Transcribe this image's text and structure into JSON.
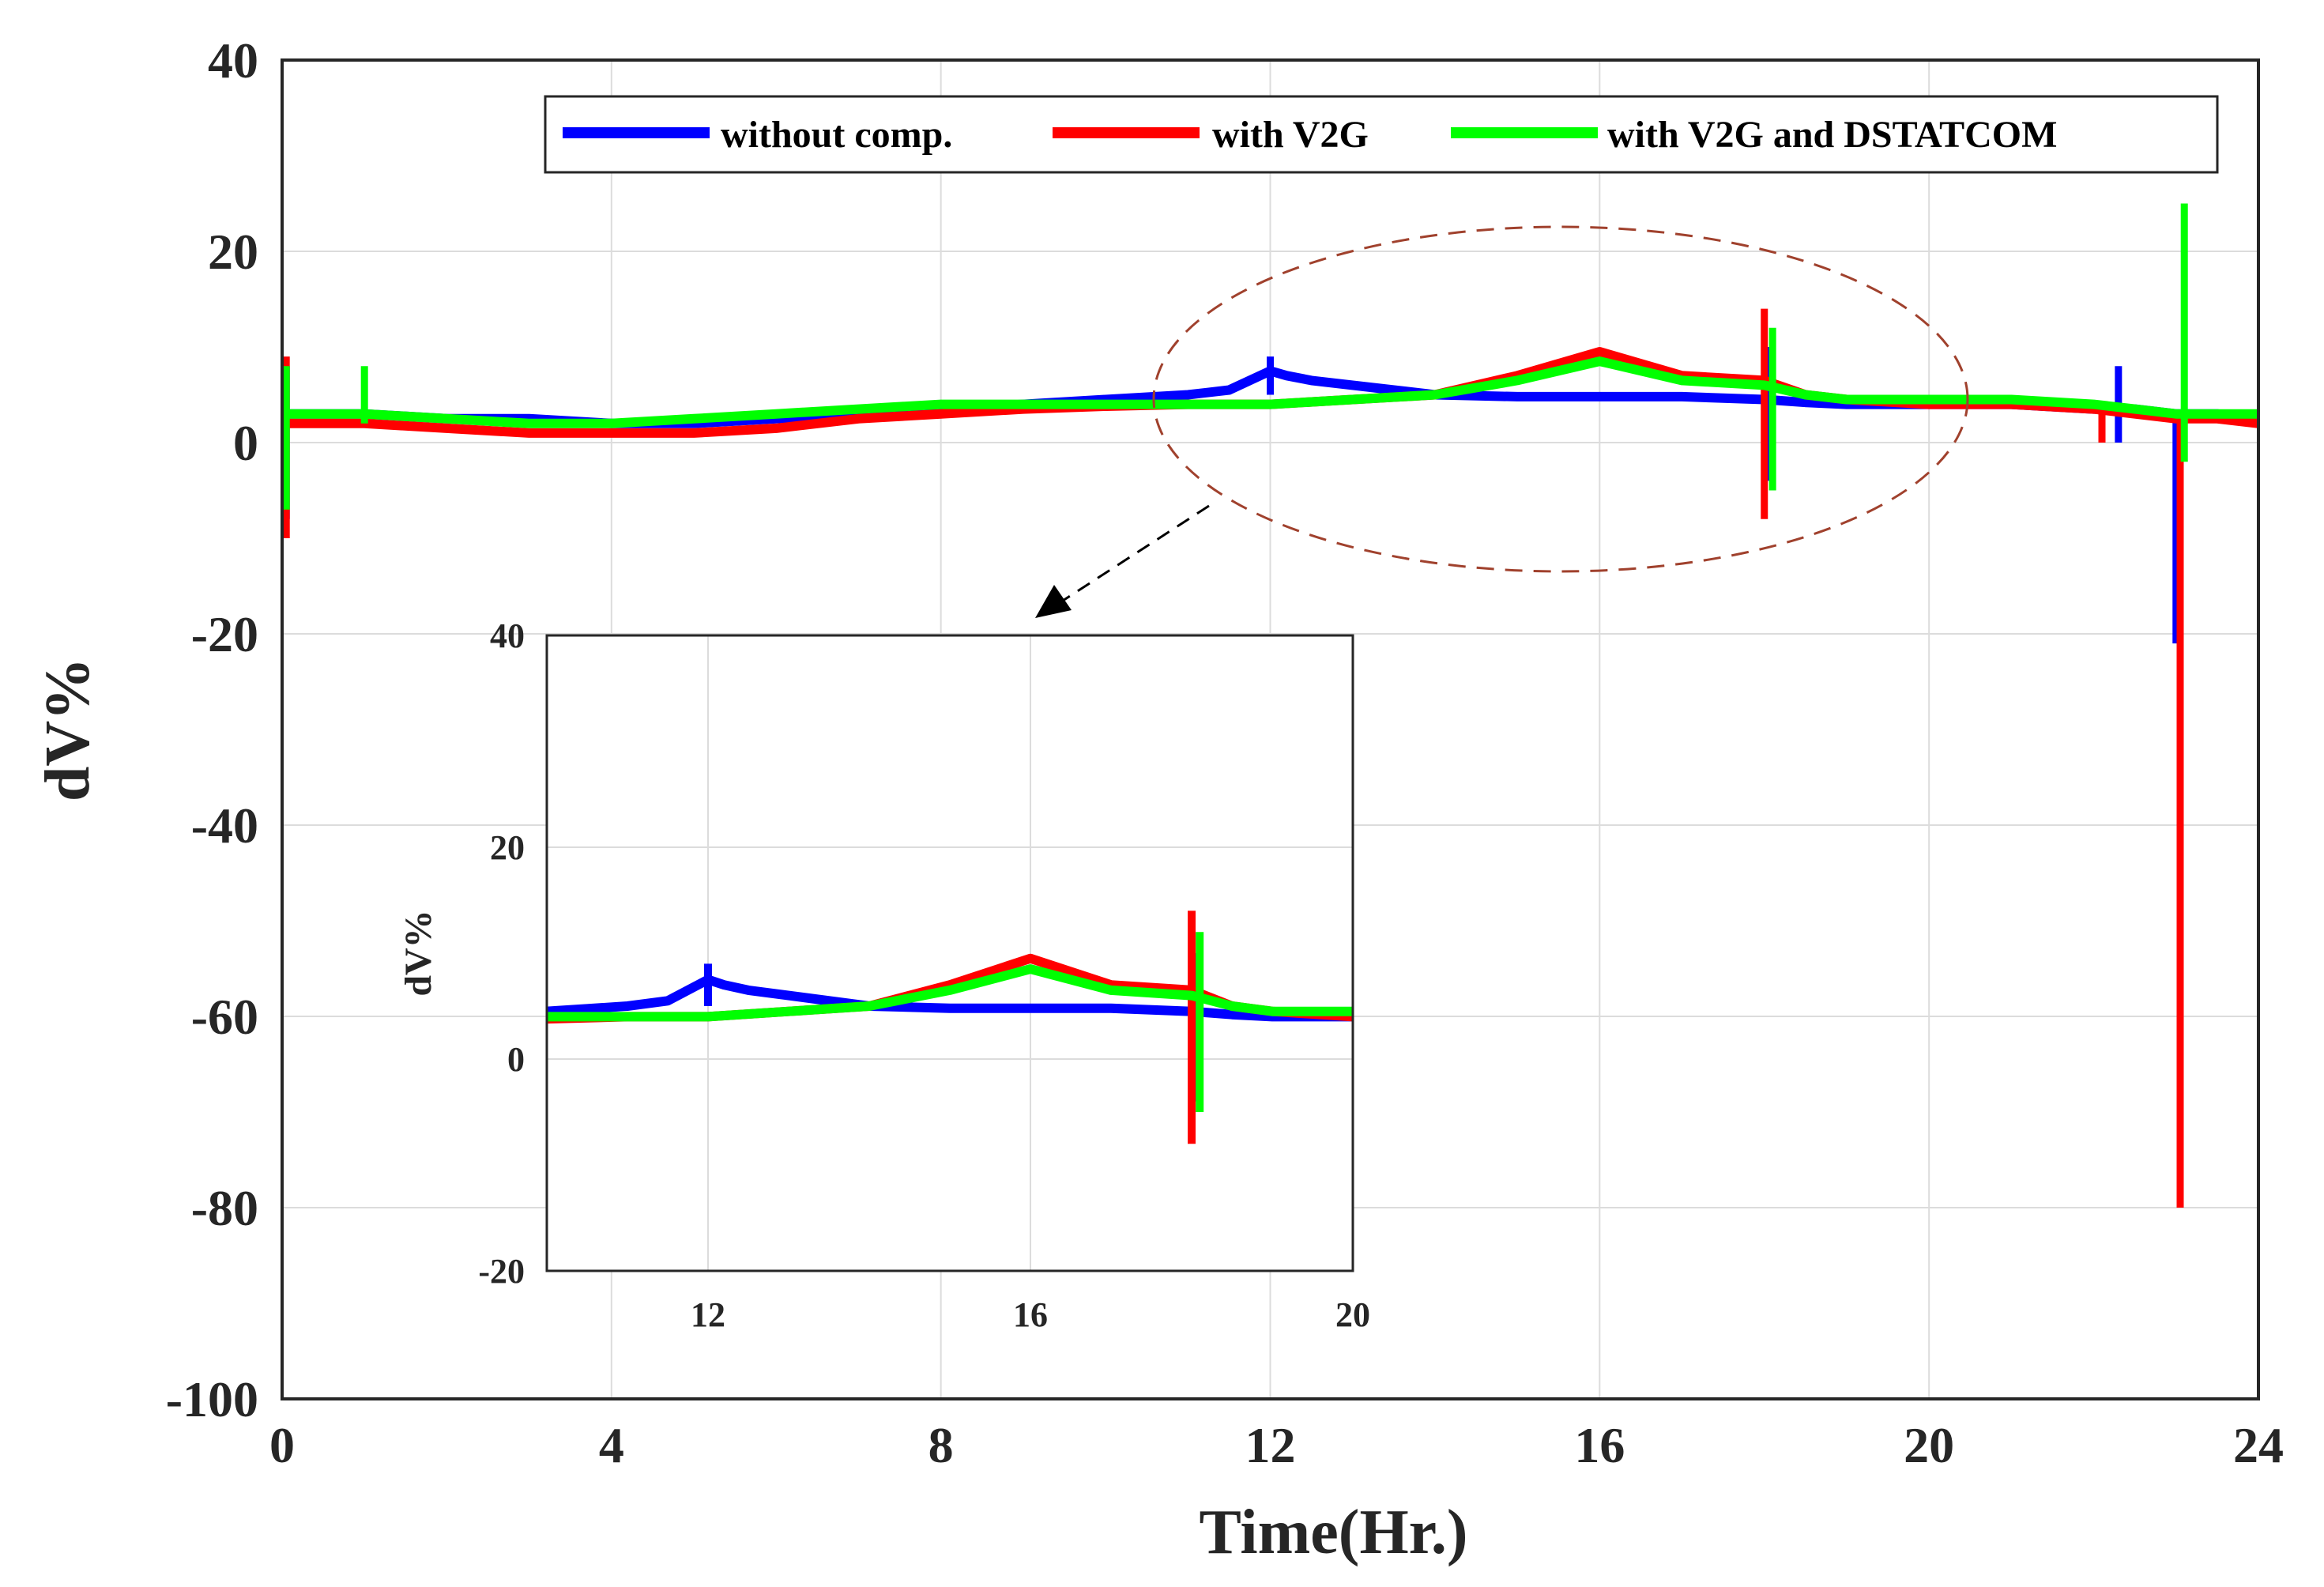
{
  "chart_data": {
    "type": "line",
    "title": "",
    "xlabel": "Time(Hr.)",
    "ylabel": "dV%",
    "xlim": [
      0,
      24
    ],
    "ylim": [
      -100,
      40
    ],
    "x_ticks": [
      0,
      4,
      8,
      12,
      16,
      20,
      24
    ],
    "y_ticks": [
      -100,
      -80,
      -60,
      -40,
      -20,
      0,
      20,
      40
    ],
    "grid": true,
    "legend_position": "top-right",
    "series": [
      {
        "name": "without comp.",
        "color": "#0000ff",
        "x": [
          0,
          1,
          2,
          3,
          4,
          5,
          6,
          7,
          8,
          9,
          10,
          11,
          11.5,
          12,
          12.2,
          12.5,
          13,
          14,
          15,
          16,
          17,
          18,
          18.5,
          19,
          20,
          21,
          22,
          22.5,
          23,
          23.5,
          24
        ],
        "y": [
          3,
          3,
          2.5,
          2.5,
          2,
          2,
          2.5,
          3,
          3.5,
          4,
          4.5,
          5,
          5.5,
          7.5,
          7,
          6.5,
          6,
          5,
          4.8,
          4.8,
          4.8,
          4.5,
          4.2,
          4,
          4,
          4,
          3.5,
          3.5,
          3,
          3,
          2.5
        ],
        "spikes": [
          {
            "x": 0.05,
            "low": -8,
            "high": 8
          },
          {
            "x": 12.0,
            "low": 5,
            "high": 9
          },
          {
            "x": 18.05,
            "low": -4,
            "high": 10
          },
          {
            "x": 22.3,
            "low": 0,
            "high": 8
          },
          {
            "x": 23.0,
            "low": -21,
            "high": 3
          }
        ]
      },
      {
        "name": "with V2G",
        "color": "#ff0000",
        "x": [
          0,
          1,
          2,
          3,
          4,
          5,
          6,
          7,
          8,
          9,
          10,
          11,
          12,
          13,
          14,
          15,
          16,
          17,
          18,
          18.5,
          19,
          20,
          21,
          22,
          22.5,
          23,
          23.5,
          24
        ],
        "y": [
          2,
          2,
          1.5,
          1,
          1,
          1,
          1.5,
          2.5,
          3,
          3.5,
          3.8,
          4,
          4,
          4.5,
          5,
          7,
          9.5,
          7,
          6.5,
          5,
          4.5,
          4,
          4,
          3.5,
          3,
          2.5,
          2.5,
          2
        ],
        "spikes": [
          {
            "x": 0.05,
            "low": -10,
            "high": 9
          },
          {
            "x": 18.0,
            "low": -8,
            "high": 14
          },
          {
            "x": 22.1,
            "low": 0,
            "high": 4
          },
          {
            "x": 23.05,
            "low": -80,
            "high": 3
          }
        ]
      },
      {
        "name": "with V2G and DSTATCOM",
        "color": "#00ff00",
        "x": [
          0,
          1,
          2,
          3,
          4,
          5,
          6,
          7,
          8,
          9,
          10,
          11,
          12,
          13,
          14,
          15,
          16,
          17,
          18,
          18.5,
          19,
          20,
          21,
          22,
          22.5,
          23,
          23.5,
          24
        ],
        "y": [
          3,
          3,
          2.5,
          2,
          2,
          2.5,
          3,
          3.5,
          4,
          4,
          4,
          4,
          4,
          4.5,
          5,
          6.5,
          8.5,
          6.5,
          6,
          5,
          4.5,
          4.5,
          4.5,
          4,
          3.5,
          3,
          3,
          3
        ],
        "spikes": [
          {
            "x": 0.05,
            "low": -7,
            "high": 8
          },
          {
            "x": 1.0,
            "low": 2,
            "high": 8
          },
          {
            "x": 18.1,
            "low": -5,
            "high": 12
          },
          {
            "x": 23.1,
            "low": -2,
            "high": 25
          }
        ]
      }
    ],
    "inset": {
      "xlim": [
        10,
        20
      ],
      "ylim": [
        -20,
        40
      ],
      "x_ticks": [
        12,
        16,
        20
      ],
      "y_ticks": [
        -20,
        0,
        20,
        40
      ],
      "ylabel": "dV%",
      "zoom_region": "ellipse around 10-20 Hr."
    }
  }
}
